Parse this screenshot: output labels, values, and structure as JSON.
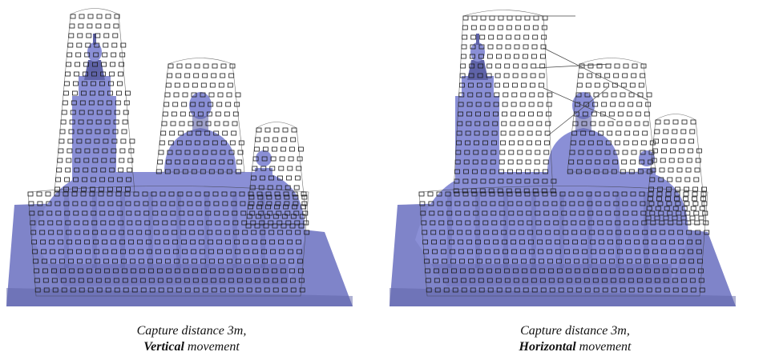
{
  "panels": [
    {
      "caption_line1": "Capture distance 3m,",
      "caption_emphasis": "Vertical",
      "caption_rest": " movement"
    },
    {
      "caption_line1": "Capture distance 3m,",
      "caption_emphasis": "Horizontal",
      "caption_rest": " movement"
    }
  ],
  "colors": {
    "model_fill": "#8a8fd6",
    "model_shade": "#5f63a8",
    "ground_fill": "#7f84c9",
    "camera_stroke": "#1a1a1a"
  }
}
